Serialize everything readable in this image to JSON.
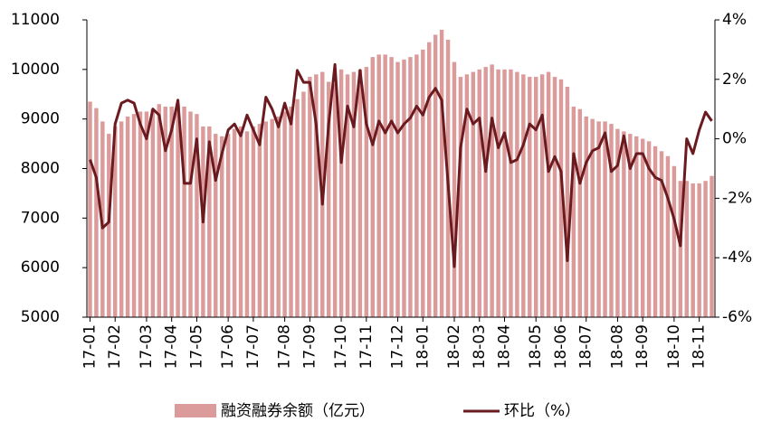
{
  "chart_data": {
    "type": "bar_line",
    "categories": [
      "17-01",
      null,
      null,
      null,
      "17-02",
      null,
      null,
      null,
      null,
      "17-03",
      null,
      null,
      null,
      "17-04",
      null,
      null,
      null,
      "17-05",
      null,
      null,
      null,
      null,
      "17-06",
      null,
      null,
      null,
      "17-07",
      null,
      null,
      null,
      null,
      "17-08",
      null,
      null,
      null,
      "17-09",
      null,
      null,
      null,
      null,
      "17-10",
      null,
      null,
      null,
      "17-11",
      null,
      null,
      null,
      null,
      "17-12",
      null,
      null,
      null,
      "18-01",
      null,
      null,
      null,
      null,
      "18-02",
      null,
      null,
      null,
      "18-03",
      null,
      null,
      null,
      "18-04",
      null,
      null,
      null,
      null,
      "18-05",
      null,
      null,
      null,
      "18-06",
      null,
      null,
      null,
      "18-07",
      null,
      null,
      null,
      null,
      "18-08",
      null,
      null,
      null,
      "18-09",
      null,
      null,
      null,
      null,
      "18-10",
      null,
      null,
      null,
      "18-11",
      null,
      null
    ],
    "series": [
      {
        "name": "融资融券余额（亿元）",
        "color": "#dc9b9b",
        "values": [
          9350,
          9220,
          8950,
          8700,
          8850,
          8950,
          9050,
          9100,
          9150,
          9150,
          9200,
          9300,
          9250,
          9250,
          9300,
          9250,
          9150,
          9100,
          8850,
          8850,
          8700,
          8650,
          8700,
          8800,
          8850,
          8750,
          8850,
          8900,
          8950,
          9000,
          9050,
          9150,
          9250,
          9400,
          9550,
          9850,
          9900,
          9950,
          9750,
          9700,
          10000,
          9900,
          9950,
          10000,
          10050,
          10250,
          10300,
          10300,
          10250,
          10150,
          10200,
          10250,
          10300,
          10400,
          10550,
          10700,
          10800,
          10600,
          10150,
          9850,
          9900,
          9950,
          10000,
          10050,
          10100,
          10000,
          10000,
          10000,
          9950,
          9900,
          9850,
          9850,
          9900,
          9950,
          9850,
          9800,
          9650,
          9250,
          9200,
          9050,
          9000,
          8950,
          8950,
          8900,
          8800,
          8750,
          8700,
          8650,
          8600,
          8550,
          8450,
          8350,
          8250,
          8050,
          7750,
          7750,
          7700,
          7700,
          7750,
          7850
        ]
      },
      {
        "name": "环比（%）",
        "color": "#6b1a1f",
        "axis": "y2",
        "values": [
          -0.7,
          -1.3,
          -3.0,
          -2.8,
          0.5,
          1.2,
          1.3,
          1.2,
          0.5,
          0.0,
          1.0,
          0.8,
          -0.4,
          0.3,
          1.3,
          -1.5,
          -1.5,
          0.0,
          -2.8,
          -0.1,
          -1.4,
          -0.5,
          0.3,
          0.5,
          0.1,
          0.8,
          0.3,
          -0.2,
          1.4,
          1.0,
          0.4,
          1.2,
          0.5,
          2.3,
          1.9,
          1.9,
          0.5,
          -2.2,
          0.5,
          2.5,
          -0.8,
          1.1,
          0.4,
          2.3,
          0.5,
          -0.2,
          0.6,
          0.2,
          0.6,
          0.2,
          0.5,
          0.7,
          1.1,
          0.8,
          1.4,
          1.7,
          1.3,
          -1.5,
          -4.3,
          -0.3,
          1.0,
          0.5,
          0.7,
          -1.1,
          0.7,
          -0.3,
          0.2,
          -0.8,
          -0.7,
          -0.2,
          0.5,
          0.3,
          0.8,
          -1.1,
          -0.6,
          -1.1,
          -4.1,
          -0.5,
          -1.5,
          -0.8,
          -0.4,
          -0.3,
          0.2,
          -1.1,
          -0.9,
          0.1,
          -1.0,
          -0.5,
          -0.5,
          -1.0,
          -1.3,
          -1.4,
          -2.0,
          -2.7,
          -3.6,
          0.0,
          -0.5,
          0.3,
          0.9,
          0.6
        ]
      }
    ],
    "ylim": [
      5000,
      11000
    ],
    "yticks": [
      5000,
      6000,
      7000,
      8000,
      9000,
      10000,
      11000
    ],
    "y2lim": [
      -6,
      4
    ],
    "y2ticks": [
      {
        "value": -6,
        "label": "-6%"
      },
      {
        "value": -4,
        "label": "-4%"
      },
      {
        "value": -2,
        "label": "-2%"
      },
      {
        "value": 0,
        "label": "0%"
      },
      {
        "value": 2,
        "label": "2%"
      },
      {
        "value": 4,
        "label": "4%"
      }
    ],
    "legend": "bottom"
  }
}
